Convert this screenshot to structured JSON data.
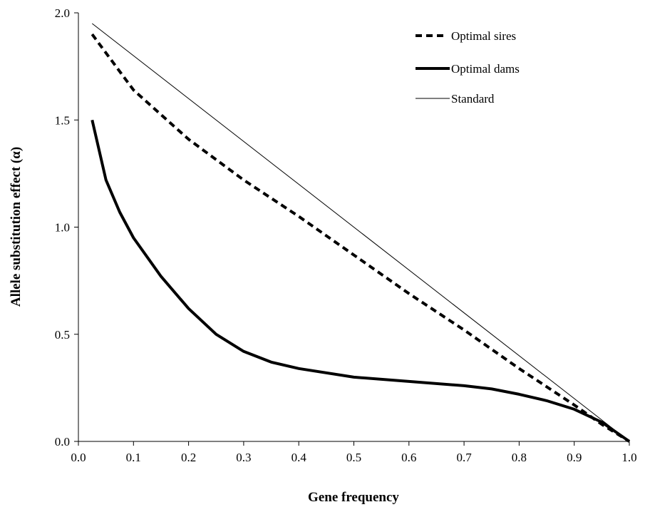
{
  "chart_data": {
    "type": "line",
    "title": "",
    "xlabel": "Gene frequency",
    "ylabel": "Allele substitution effect (α)",
    "xlim": [
      0.0,
      1.0
    ],
    "ylim": [
      0.0,
      2.0
    ],
    "x_ticks": [
      "0.0",
      "0.1",
      "0.2",
      "0.3",
      "0.4",
      "0.5",
      "0.6",
      "0.7",
      "0.8",
      "0.9",
      "1.0"
    ],
    "y_ticks": [
      "0.0",
      "0.5",
      "1.0",
      "1.5",
      "2.0"
    ],
    "grid": false,
    "legend_position": "top-right",
    "series": [
      {
        "name": "Optimal sires",
        "style": "dashed",
        "color": "#000000",
        "points": [
          [
            0.025,
            1.9
          ],
          [
            0.1,
            1.64
          ],
          [
            0.2,
            1.41
          ],
          [
            0.3,
            1.22
          ],
          [
            0.4,
            1.05
          ],
          [
            0.5,
            0.87
          ],
          [
            0.6,
            0.69
          ],
          [
            0.7,
            0.52
          ],
          [
            0.8,
            0.34
          ],
          [
            0.9,
            0.17
          ],
          [
            0.95,
            0.08
          ],
          [
            1.0,
            0.0
          ]
        ]
      },
      {
        "name": "Optimal dams",
        "style": "thick",
        "color": "#000000",
        "points": [
          [
            0.025,
            1.5
          ],
          [
            0.05,
            1.22
          ],
          [
            0.075,
            1.07
          ],
          [
            0.1,
            0.95
          ],
          [
            0.15,
            0.77
          ],
          [
            0.2,
            0.62
          ],
          [
            0.25,
            0.5
          ],
          [
            0.3,
            0.42
          ],
          [
            0.35,
            0.37
          ],
          [
            0.4,
            0.34
          ],
          [
            0.5,
            0.3
          ],
          [
            0.6,
            0.28
          ],
          [
            0.7,
            0.26
          ],
          [
            0.75,
            0.245
          ],
          [
            0.8,
            0.22
          ],
          [
            0.85,
            0.19
          ],
          [
            0.9,
            0.15
          ],
          [
            0.95,
            0.09
          ],
          [
            1.0,
            0.0
          ]
        ]
      },
      {
        "name": "Standard",
        "style": "thin",
        "color": "#000000",
        "points": [
          [
            0.025,
            1.95
          ],
          [
            1.0,
            0.0
          ]
        ]
      }
    ]
  }
}
